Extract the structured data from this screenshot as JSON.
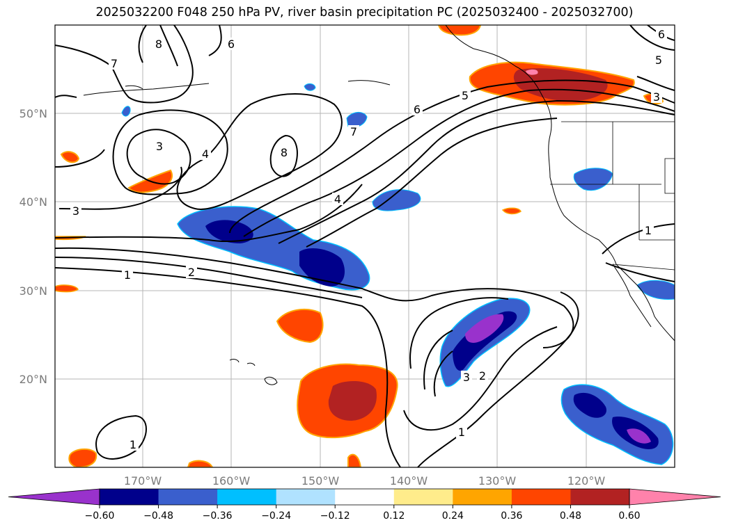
{
  "title": "2025032200 F048 250 hPa PV, river basin precipitation PC (2025032400 - 2025032700)",
  "lat_labels": [
    "50°N",
    "40°N",
    "30°N",
    "20°N"
  ],
  "lon_labels": [
    "170°W",
    "160°W",
    "150°W",
    "140°W",
    "130°W",
    "120°W"
  ],
  "contour_labels": [
    "1",
    "2",
    "3",
    "4",
    "5",
    "6",
    "7",
    "8"
  ],
  "colorbar": {
    "ticks": [
      "−0.60",
      "−0.48",
      "−0.36",
      "−0.24",
      "−0.12",
      "0.12",
      "0.24",
      "0.36",
      "0.48",
      "0.60"
    ],
    "colors": [
      "#9932cc",
      "#00008b",
      "#3a5fcd",
      "#00bfff",
      "#b0e2ff",
      "#ffffff",
      "#ffec8b",
      "#ffa500",
      "#ff4500",
      "#b22222",
      "#ff82ab"
    ]
  }
}
